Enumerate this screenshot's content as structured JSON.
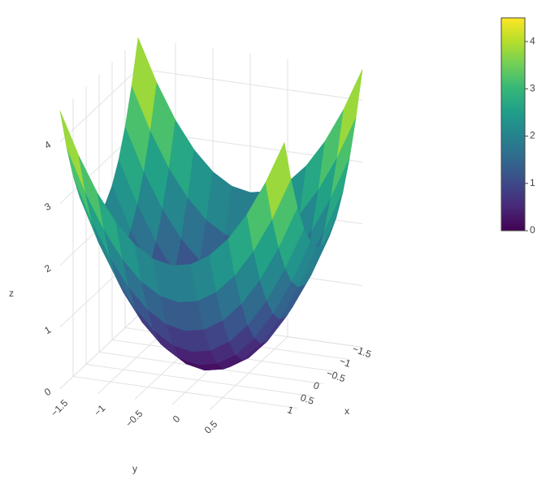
{
  "chart_data": {
    "type": "surface",
    "x": [
      -1.5,
      -1.25,
      -1,
      -0.75,
      -0.5,
      -0.25,
      0,
      0.25,
      0.5,
      0.75,
      1,
      1.25,
      1.5
    ],
    "y": [
      -1.5,
      -1.25,
      -1,
      -0.75,
      -0.5,
      -0.25,
      0,
      0.25,
      0.5,
      0.75,
      1,
      1.25,
      1.5
    ],
    "z": [
      [
        4.5,
        3.8125,
        3.25,
        2.8125,
        2.5,
        2.3125,
        2.25,
        2.3125,
        2.5,
        2.8125,
        3.25,
        3.8125,
        4.5
      ],
      [
        3.8125,
        3.125,
        2.5625,
        2.125,
        1.8125,
        1.625,
        1.5625,
        1.625,
        1.8125,
        2.125,
        2.5625,
        3.125,
        3.8125
      ],
      [
        3.25,
        2.5625,
        2,
        1.5625,
        1.25,
        1.0625,
        1,
        1.0625,
        1.25,
        1.5625,
        2,
        2.5625,
        3.25
      ],
      [
        2.8125,
        2.125,
        1.5625,
        1.125,
        0.8125,
        0.625,
        0.5625,
        0.625,
        0.8125,
        1.125,
        1.5625,
        2.125,
        2.8125
      ],
      [
        2.5,
        1.8125,
        1.25,
        0.8125,
        0.5,
        0.3125,
        0.25,
        0.3125,
        0.5,
        0.8125,
        1.25,
        1.8125,
        2.5
      ],
      [
        2.3125,
        1.625,
        1.0625,
        0.625,
        0.3125,
        0.125,
        0.0625,
        0.125,
        0.3125,
        0.625,
        1.0625,
        1.625,
        2.3125
      ],
      [
        2.25,
        1.5625,
        1,
        0.5625,
        0.25,
        0.0625,
        0,
        0.0625,
        0.25,
        0.5625,
        1,
        1.5625,
        2.25
      ],
      [
        2.3125,
        1.625,
        1.0625,
        0.625,
        0.3125,
        0.125,
        0.0625,
        0.125,
        0.3125,
        0.625,
        1.0625,
        1.625,
        2.3125
      ],
      [
        2.5,
        1.8125,
        1.25,
        0.8125,
        0.5,
        0.3125,
        0.25,
        0.3125,
        0.5,
        0.8125,
        1.25,
        1.8125,
        2.5
      ],
      [
        2.8125,
        2.125,
        1.5625,
        1.125,
        0.8125,
        0.625,
        0.5625,
        0.625,
        0.8125,
        1.125,
        1.5625,
        2.125,
        2.8125
      ],
      [
        3.25,
        2.5625,
        2,
        1.5625,
        1.25,
        1.0625,
        1,
        1.0625,
        1.25,
        1.5625,
        2,
        2.5625,
        3.25
      ],
      [
        3.8125,
        3.125,
        2.5625,
        2.125,
        1.8125,
        1.625,
        1.5625,
        1.625,
        1.8125,
        2.125,
        2.5625,
        3.125,
        3.8125
      ],
      [
        4.5,
        3.8125,
        3.25,
        2.8125,
        2.5,
        2.3125,
        2.25,
        2.3125,
        2.5,
        2.8125,
        3.25,
        3.8125,
        4.5
      ]
    ],
    "colorscale": "Viridis",
    "xlabel": "x",
    "ylabel": "y",
    "zlabel": "z",
    "xlim": [
      -1.5,
      1.5
    ],
    "ylim": [
      -1.5,
      1.5
    ],
    "zlim": [
      0,
      4.5
    ],
    "xticks": [
      {
        "value": -1.5,
        "label": "−1.5"
      },
      {
        "value": -1,
        "label": "−1"
      },
      {
        "value": -0.5,
        "label": "−0.5"
      },
      0,
      0.5,
      1
    ],
    "yticks": [
      {
        "value": -1.5,
        "label": "−1.5"
      },
      {
        "value": -1,
        "label": "−1"
      },
      {
        "value": -0.5,
        "label": "−0.5"
      },
      0,
      0.5
    ],
    "zticks": [
      0,
      1,
      2,
      3,
      4
    ],
    "clim": [
      0,
      4.5
    ],
    "cticks": [
      0,
      1,
      2,
      3,
      4
    ],
    "grid": true
  }
}
